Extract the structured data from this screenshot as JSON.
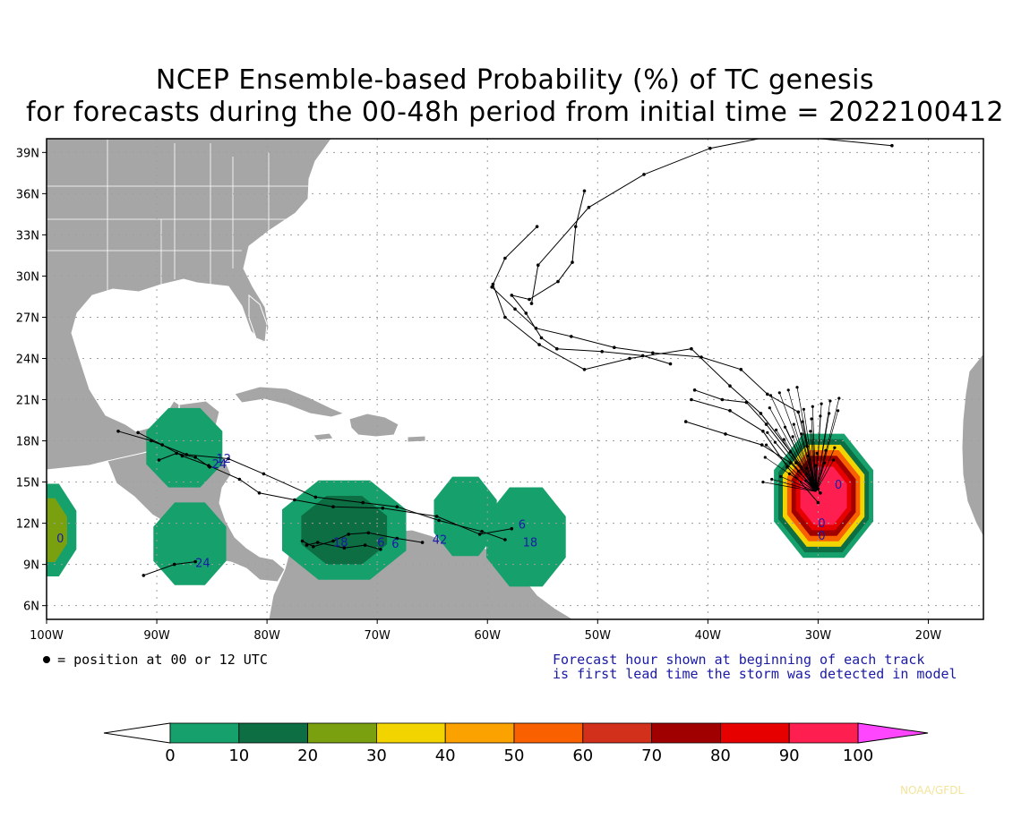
{
  "title_line1": "NCEP Ensemble-based Probability (%) of TC genesis",
  "title_line2": "for forecasts during the 00-48h period from initial time = 2022100412",
  "map": {
    "lat_labels": [
      "39N",
      "36N",
      "33N",
      "30N",
      "27N",
      "24N",
      "21N",
      "18N",
      "15N",
      "12N",
      "9N",
      "6N"
    ],
    "lon_labels": [
      "100W",
      "90W",
      "80W",
      "70W",
      "60W",
      "50W",
      "40W",
      "30W",
      "20W"
    ],
    "land_color": "#a6a6a6",
    "ocean_color": "#ffffff",
    "track_labels": [
      {
        "text": "12",
        "lon": -84.6,
        "lat": 16.4
      },
      {
        "text": "24",
        "lon": -85.0,
        "lat": 16.0
      },
      {
        "text": "24",
        "lon": -86.5,
        "lat": 8.8
      },
      {
        "text": "18",
        "lon": -74.0,
        "lat": 10.3
      },
      {
        "text": "6",
        "lon": -70.0,
        "lat": 10.3
      },
      {
        "text": "6",
        "lon": -68.7,
        "lat": 10.2
      },
      {
        "text": "42",
        "lon": -65.0,
        "lat": 10.5
      },
      {
        "text": "6",
        "lon": -57.2,
        "lat": 11.6
      },
      {
        "text": "18",
        "lon": -56.8,
        "lat": 10.3
      },
      {
        "text": "0",
        "lon": -99.1,
        "lat": 10.6
      },
      {
        "text": "0",
        "lon": -28.5,
        "lat": 14.5
      },
      {
        "text": "0",
        "lon": -30.0,
        "lat": 11.7
      },
      {
        "text": "0",
        "lon": -30.0,
        "lat": 10.8
      }
    ]
  },
  "colorbar": {
    "ticks": [
      "0",
      "10",
      "20",
      "30",
      "40",
      "50",
      "60",
      "70",
      "80",
      "90",
      "100"
    ],
    "colors": [
      "#ffffff",
      "#16a06c",
      "#0c6e42",
      "#7aa010",
      "#f2d400",
      "#fba100",
      "#f86000",
      "#d2301a",
      "#a00000",
      "#e60000",
      "#ff1e50",
      "#ff46ff"
    ]
  },
  "legend_text": "= position at 00 or 12 UTC",
  "forecast_note_line1": "Forecast hour shown at beginning of each track",
  "forecast_note_line2": "is first lead time the storm was detected in model",
  "credit": "NOAA/GFDL"
}
